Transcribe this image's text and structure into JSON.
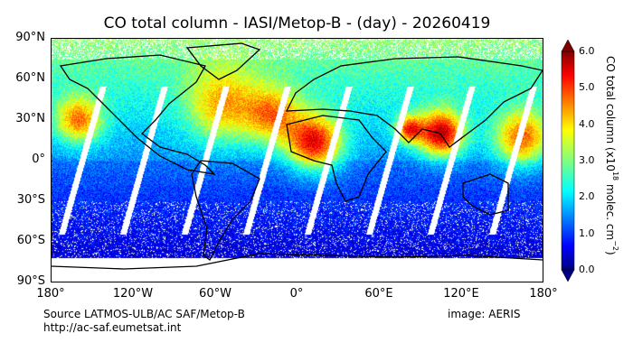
{
  "title": "CO total column - IASI/Metop-B - (day) - 20260419",
  "lat_labels": [
    "90°N",
    "60°N",
    "30°N",
    "0°",
    "30°S",
    "60°S",
    "90°S"
  ],
  "lon_labels": [
    "180°",
    "120°W",
    "60°W",
    "0°",
    "60°E",
    "120°E",
    "180°"
  ],
  "colorbar": {
    "label": "CO total column (x10",
    "label_exp": "18",
    "label_rest": " molec. cm",
    "label_exp2": "−2",
    "label_close": ")",
    "ticks": [
      "0.0",
      "1.0",
      "2.0",
      "3.0",
      "4.0",
      "5.0",
      "6.0"
    ],
    "range": [
      0,
      6
    ],
    "colormap": "jet"
  },
  "footer": {
    "source": "Source LATMOS-ULB/AC SAF/Metop-B",
    "url": "http://ac-saf.eumetsat.int",
    "credit": "image: AERIS"
  }
}
